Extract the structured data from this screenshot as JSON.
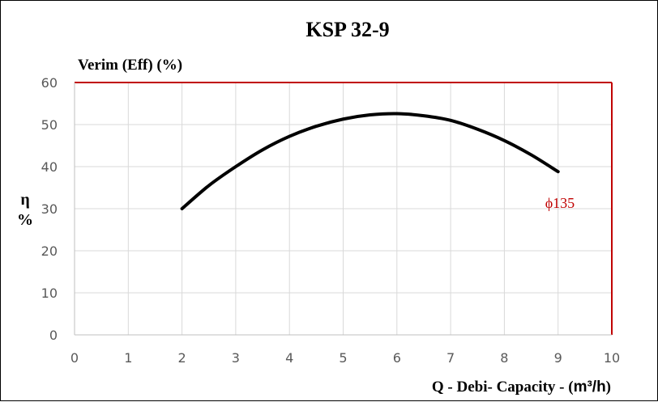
{
  "chart_data": {
    "type": "line",
    "title": "KSP 32-9",
    "subtitle": "Verim (Eff) (%)",
    "ylabel_symbol": "η",
    "ylabel_unit": "%",
    "xlabel_prefix": "Q - Debi- Capacity - (",
    "xlabel_unit": "m³/h",
    "xlabel_suffix": ")",
    "xlim": [
      0,
      10
    ],
    "ylim": [
      0,
      60
    ],
    "x_ticks": [
      "0",
      "1",
      "2",
      "3",
      "4",
      "5",
      "6",
      "7",
      "8",
      "9",
      "10"
    ],
    "y_ticks": [
      "0",
      "10",
      "20",
      "30",
      "40",
      "50",
      "60"
    ],
    "grid": true,
    "series": [
      {
        "name": "ϕ135",
        "color": "#000000",
        "x": [
          2,
          2.5,
          3,
          3.5,
          4,
          4.5,
          5,
          5.5,
          6,
          6.5,
          7,
          7.5,
          8,
          8.5,
          9
        ],
        "y": [
          30,
          35.5,
          40,
          44,
          47.2,
          49.6,
          51.3,
          52.3,
          52.6,
          52.1,
          51,
          48.9,
          46.2,
          42.8,
          38.8
        ]
      }
    ],
    "frame_color": "#c00000"
  }
}
